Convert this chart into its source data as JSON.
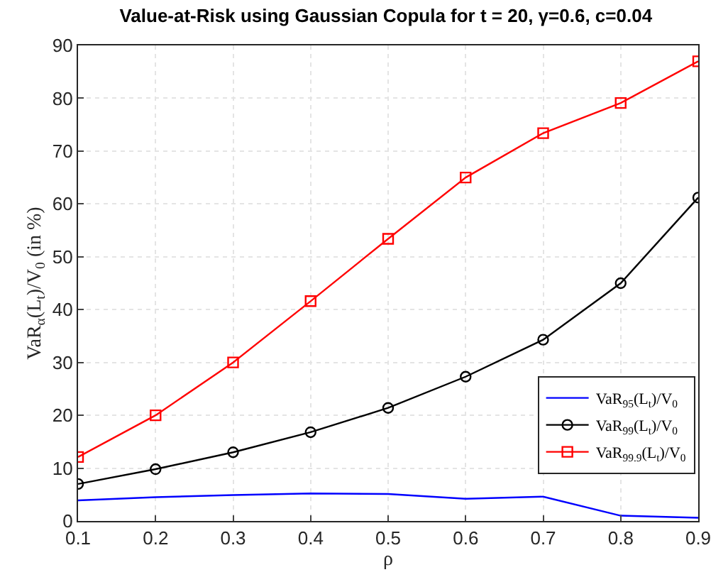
{
  "chart_data": {
    "type": "line",
    "title": "Value-at-Risk using Gaussian Copula for t = 20, γ=0.6, c=0.04",
    "xlabel": "ρ",
    "ylabel": "VaR$_{α}$(L$_{t}$)/V$_{0}$ (in %)",
    "x": [
      0.1,
      0.2,
      0.3,
      0.4,
      0.5,
      0.6,
      0.7,
      0.8,
      0.9
    ],
    "series": [
      {
        "name": "VaR$_{95}$(L$_{t}$)/V$_{0}$",
        "color": "#0000ff",
        "marker": "none",
        "values": [
          3.9,
          4.5,
          4.9,
          5.2,
          5.1,
          4.2,
          4.6,
          1.0,
          0.6
        ]
      },
      {
        "name": "VaR$_{99}$(L$_{t}$)/V$_{0}$",
        "color": "#000000",
        "marker": "circle",
        "values": [
          7.0,
          9.8,
          13.0,
          16.8,
          21.4,
          27.3,
          34.3,
          45.0,
          61.2
        ]
      },
      {
        "name": "VaR$_{99.9}$(L$_{t}$)/V$_{0}$",
        "color": "#ff0000",
        "marker": "square",
        "values": [
          12.1,
          20.0,
          30.0,
          41.6,
          53.4,
          65.0,
          73.4,
          79.1,
          87.0
        ]
      }
    ],
    "xlim": [
      0.1,
      0.9
    ],
    "xticks": [
      0.1,
      0.2,
      0.3,
      0.4,
      0.5,
      0.6,
      0.7,
      0.8,
      0.9
    ],
    "ylim": [
      0,
      90
    ],
    "yticks": [
      0,
      10,
      20,
      30,
      40,
      50,
      60,
      70,
      80,
      90
    ],
    "grid": true,
    "legend": "right",
    "line_style": "solid"
  }
}
